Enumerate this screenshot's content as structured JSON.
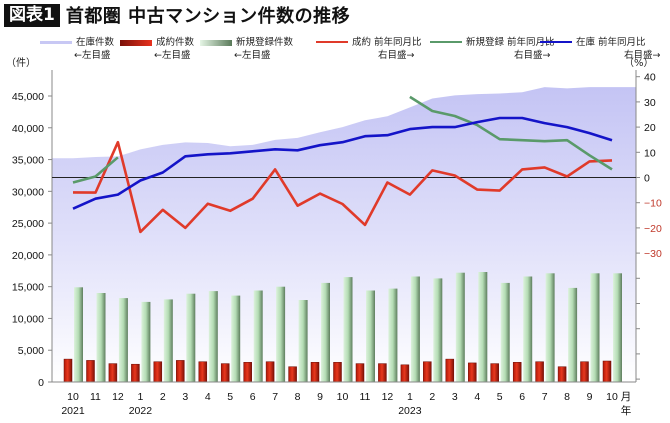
{
  "header": {
    "badge": "図表1",
    "title": "首都圏 中古マンション件数の推移"
  },
  "axes": {
    "left_unit": "（件）",
    "right_unit": "（%）",
    "month_label": "月",
    "year_label": "年"
  },
  "legend": [
    {
      "label": "在庫件数",
      "sub": "←左目盛",
      "color": "#c8c8f4",
      "kind": "area"
    },
    {
      "label": "成約件数",
      "sub": "←左目盛",
      "color": "#d42a1a",
      "kind": "bar"
    },
    {
      "label": "新規登録件数",
      "sub": "←左目盛",
      "color": "#8fbf8f",
      "kind": "bar"
    },
    {
      "label": "成約 前年同月比",
      "sub": "右目盛→",
      "color": "#e03a2a",
      "kind": "line"
    },
    {
      "label": "新規登録 前年同月比",
      "sub": "右目盛→",
      "color": "#5a9a6a",
      "kind": "line"
    },
    {
      "label": "在庫 前年同月比",
      "sub": "右目盛→",
      "color": "#1414c8",
      "kind": "line"
    }
  ],
  "chart_data": {
    "type": "bar",
    "title": "首都圏 中古マンション件数の推移",
    "xlabel": "月 / 年",
    "ylabel_left": "（件）",
    "ylabel_right": "（%）",
    "ylim_left": [
      0,
      45000
    ],
    "ylim_right": [
      -30,
      40
    ],
    "left_ticks": [
      "0",
      "5,000",
      "10,000",
      "15,000",
      "20,000",
      "25,000",
      "30,000",
      "35,000",
      "40,000",
      "45,000"
    ],
    "right_ticks": [
      "40",
      "30",
      "20",
      "10",
      "0",
      "−10",
      "−20",
      "−30"
    ],
    "categories": [
      "10",
      "11",
      "12",
      "1",
      "2",
      "3",
      "4",
      "5",
      "6",
      "7",
      "8",
      "9",
      "10",
      "11",
      "12",
      "1",
      "2",
      "3",
      "4",
      "5",
      "6",
      "7",
      "8",
      "9",
      "10"
    ],
    "year_labels": [
      {
        "index": 0,
        "label": "2021"
      },
      {
        "index": 3,
        "label": "2022"
      },
      {
        "index": 15,
        "label": "2023"
      }
    ],
    "legend_position": "top",
    "grid": false,
    "series": [
      {
        "name": "在庫件数",
        "type": "area",
        "axis": "left",
        "color": "#c8c8f4",
        "values": [
          35200,
          35400,
          35500,
          36600,
          37300,
          37700,
          37600,
          37100,
          37300,
          38100,
          38400,
          39300,
          40100,
          41200,
          41800,
          43200,
          44600,
          45100,
          45300,
          45400,
          45600,
          46400,
          46200,
          46400,
          46400
        ]
      },
      {
        "name": "成約件数",
        "type": "bar",
        "axis": "left",
        "color": "#d42a1a",
        "values": [
          3600,
          3400,
          2900,
          2800,
          3200,
          3400,
          3200,
          2900,
          3100,
          3200,
          2400,
          3100,
          3100,
          2900,
          2900,
          2700,
          3200,
          3600,
          3000,
          2900,
          3100,
          3200,
          2400,
          3200,
          3300
        ]
      },
      {
        "name": "新規登録件数",
        "type": "bar",
        "axis": "left",
        "color": "#a8d8a8",
        "values": [
          14900,
          14000,
          13200,
          12600,
          13000,
          13900,
          14300,
          13600,
          14400,
          15000,
          12900,
          15600,
          16500,
          14400,
          14700,
          16600,
          16300,
          17200,
          17300,
          15600,
          16600,
          17100,
          14800,
          17100,
          17100
        ]
      },
      {
        "name": "成約 前年同月比",
        "type": "line",
        "axis": "right",
        "color": "#e03a2a",
        "values": [
          -5.9,
          -6.0,
          14.0,
          -21.6,
          -12.8,
          -20.0,
          -10.4,
          -13.2,
          -8.4,
          3.2,
          -11.2,
          -6.4,
          -10.5,
          -18.8,
          -2.0,
          -6.8,
          2.8,
          0.8,
          -4.8,
          -5.2,
          3.2,
          4.0,
          0.4,
          6.4,
          6.8
        ]
      },
      {
        "name": "新規登録 前年同月比",
        "type": "line",
        "axis": "right",
        "color": "#5a9a6a",
        "values": [
          -2.0,
          0.4,
          8.0,
          null,
          null,
          null,
          null,
          null,
          null,
          null,
          null,
          null,
          null,
          null,
          null,
          32.0,
          26.4,
          24.4,
          20.8,
          15.2,
          14.8,
          14.4,
          14.8,
          8.8,
          3.2
        ]
      },
      {
        "name": "在庫 前年同月比",
        "type": "line",
        "axis": "right",
        "color": "#1414c8",
        "values": [
          -12.4,
          -8.4,
          -6.8,
          -1.2,
          2.0,
          8.4,
          9.2,
          9.6,
          10.4,
          11.2,
          10.8,
          12.8,
          14.0,
          16.4,
          16.8,
          19.2,
          20.0,
          20.0,
          22.0,
          23.6,
          23.6,
          21.6,
          20.0,
          17.6,
          14.8
        ]
      }
    ]
  }
}
